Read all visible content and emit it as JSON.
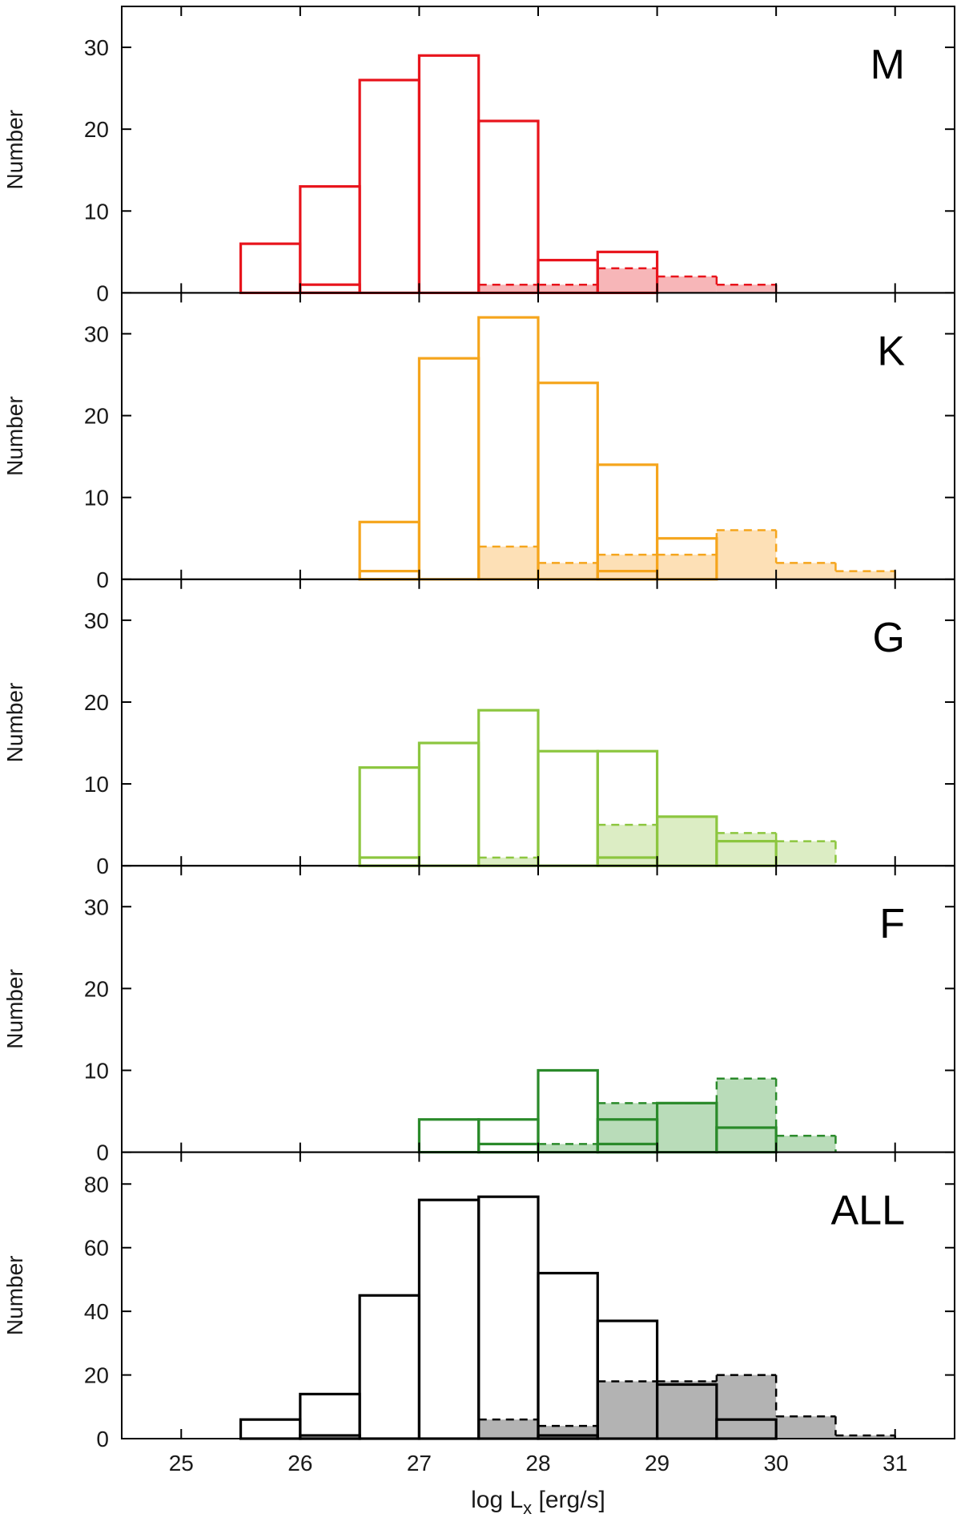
{
  "chart_data": {
    "type": "histogram",
    "xlabel": "log L",
    "xlabel_sub": "x",
    "xlabel_unit": " [erg/s]",
    "xlim": [
      24.5,
      31.5
    ],
    "xticks": [
      25,
      26,
      27,
      28,
      29,
      30,
      31
    ],
    "bin_width": 0.5,
    "panels": [
      {
        "label": "M",
        "ylabel": "Number",
        "ylim": [
          0,
          35
        ],
        "yticks": [
          0,
          10,
          20,
          30
        ],
        "color": "#e8141c",
        "fill": "#f7b6b8",
        "series": [
          {
            "name": "outline-total",
            "style": "solid-outline",
            "bins": [
              [
                25.5,
                6
              ],
              [
                26.0,
                13
              ],
              [
                26.5,
                26
              ],
              [
                27.0,
                29
              ],
              [
                27.5,
                21
              ],
              [
                28.0,
                4
              ],
              [
                28.5,
                5
              ]
            ]
          },
          {
            "name": "outline-inner",
            "style": "solid-outline",
            "bins": [
              [
                26.0,
                1
              ]
            ]
          },
          {
            "name": "filled",
            "style": "dashed-filled",
            "bins": [
              [
                27.5,
                1
              ],
              [
                28.0,
                1
              ],
              [
                28.5,
                3
              ],
              [
                29.0,
                2
              ],
              [
                29.5,
                1
              ]
            ]
          }
        ]
      },
      {
        "label": "K",
        "ylabel": "Number",
        "ylim": [
          0,
          35
        ],
        "yticks": [
          0,
          10,
          20,
          30
        ],
        "color": "#f5a51c",
        "fill": "#fde0b6",
        "series": [
          {
            "name": "outline-total",
            "style": "solid-outline",
            "bins": [
              [
                26.5,
                7
              ],
              [
                27.0,
                27
              ],
              [
                27.5,
                32
              ],
              [
                28.0,
                24
              ],
              [
                28.5,
                14
              ],
              [
                29.0,
                5
              ]
            ]
          },
          {
            "name": "outline-inner",
            "style": "solid-outline",
            "bins": [
              [
                26.5,
                1
              ],
              [
                28.5,
                1
              ]
            ]
          },
          {
            "name": "filled",
            "style": "dashed-filled",
            "bins": [
              [
                27.5,
                4
              ],
              [
                28.0,
                2
              ],
              [
                28.5,
                3
              ],
              [
                29.0,
                3
              ],
              [
                29.5,
                6
              ],
              [
                30.0,
                2
              ],
              [
                30.5,
                1
              ]
            ]
          }
        ]
      },
      {
        "label": "G",
        "ylabel": "Number",
        "ylim": [
          0,
          35
        ],
        "yticks": [
          0,
          10,
          20,
          30
        ],
        "color": "#8cc63f",
        "fill": "#dcedc4",
        "series": [
          {
            "name": "outline-total",
            "style": "solid-outline",
            "bins": [
              [
                26.5,
                12
              ],
              [
                27.0,
                15
              ],
              [
                27.5,
                19
              ],
              [
                28.0,
                14
              ],
              [
                28.5,
                14
              ],
              [
                29.0,
                6
              ],
              [
                29.5,
                3
              ]
            ]
          },
          {
            "name": "outline-inner",
            "style": "solid-outline",
            "bins": [
              [
                26.5,
                1
              ],
              [
                28.5,
                1
              ]
            ]
          },
          {
            "name": "filled",
            "style": "dashed-filled",
            "bins": [
              [
                27.5,
                1
              ],
              [
                28.5,
                5
              ],
              [
                29.0,
                6
              ],
              [
                29.5,
                4
              ],
              [
                30.0,
                3
              ]
            ]
          }
        ]
      },
      {
        "label": "F",
        "ylabel": "Number",
        "ylim": [
          0,
          35
        ],
        "yticks": [
          0,
          10,
          20,
          30
        ],
        "color": "#2a8a2a",
        "fill": "#b9dcb9",
        "series": [
          {
            "name": "outline-total",
            "style": "solid-outline",
            "bins": [
              [
                27.0,
                4
              ],
              [
                27.5,
                4
              ],
              [
                28.0,
                10
              ],
              [
                28.5,
                4
              ],
              [
                29.0,
                6
              ],
              [
                29.5,
                3
              ]
            ]
          },
          {
            "name": "outline-inner",
            "style": "solid-outline",
            "bins": [
              [
                27.5,
                1
              ],
              [
                28.5,
                1
              ]
            ]
          },
          {
            "name": "filled",
            "style": "dashed-filled",
            "bins": [
              [
                28.0,
                1
              ],
              [
                28.5,
                6
              ],
              [
                29.0,
                6
              ],
              [
                29.5,
                9
              ],
              [
                30.0,
                2
              ]
            ]
          }
        ]
      },
      {
        "label": "ALL",
        "ylabel": "Number",
        "ylim": [
          0,
          90
        ],
        "yticks": [
          0,
          20,
          40,
          60,
          80
        ],
        "color": "#000000",
        "fill": "#b3b3b3",
        "series": [
          {
            "name": "outline-total",
            "style": "solid-outline",
            "bins": [
              [
                25.5,
                6
              ],
              [
                26.0,
                14
              ],
              [
                26.5,
                45
              ],
              [
                27.0,
                75
              ],
              [
                27.5,
                76
              ],
              [
                28.0,
                52
              ],
              [
                28.5,
                37
              ],
              [
                29.0,
                17
              ],
              [
                29.5,
                6
              ]
            ]
          },
          {
            "name": "outline-inner",
            "style": "solid-outline",
            "bins": [
              [
                26.0,
                1
              ],
              [
                28.0,
                1
              ]
            ]
          },
          {
            "name": "filled",
            "style": "dashed-filled",
            "bins": [
              [
                27.5,
                6
              ],
              [
                28.0,
                4
              ],
              [
                28.5,
                18
              ],
              [
                29.0,
                18
              ],
              [
                29.5,
                20
              ],
              [
                30.0,
                7
              ],
              [
                30.5,
                1
              ]
            ]
          }
        ]
      }
    ]
  }
}
